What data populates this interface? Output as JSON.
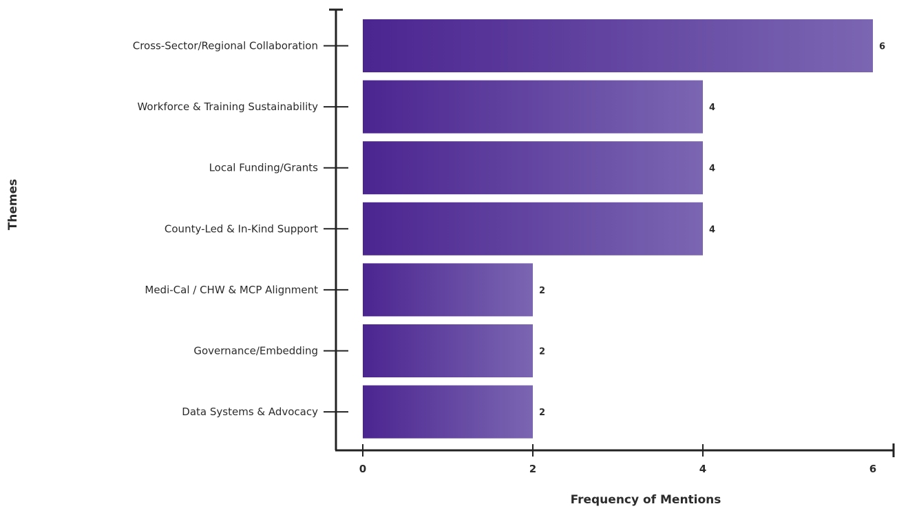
{
  "chart_data": {
    "type": "bar",
    "orientation": "horizontal",
    "title": "",
    "xlabel": "Frequency of Mentions",
    "ylabel": "Themes",
    "categories": [
      "Cross-Sector/Regional Collaboration",
      "Workforce & Training Sustainability",
      "Local Funding/Grants",
      "County-Led & In-Kind Support",
      "Medi-Cal / CHW & MCP Alignment",
      "Governance/Embedding",
      "Data Systems & Advocacy"
    ],
    "values": [
      6,
      4,
      4,
      4,
      2,
      2,
      2
    ],
    "xlim": [
      0,
      6
    ],
    "xticks": [
      0,
      2,
      4,
      6
    ],
    "grid": false,
    "legend": "none",
    "colors": {
      "bar_start": "#4b2590",
      "bar_end": "#7b66b2",
      "axis": "#222222",
      "text": "#2b2b2b"
    }
  }
}
